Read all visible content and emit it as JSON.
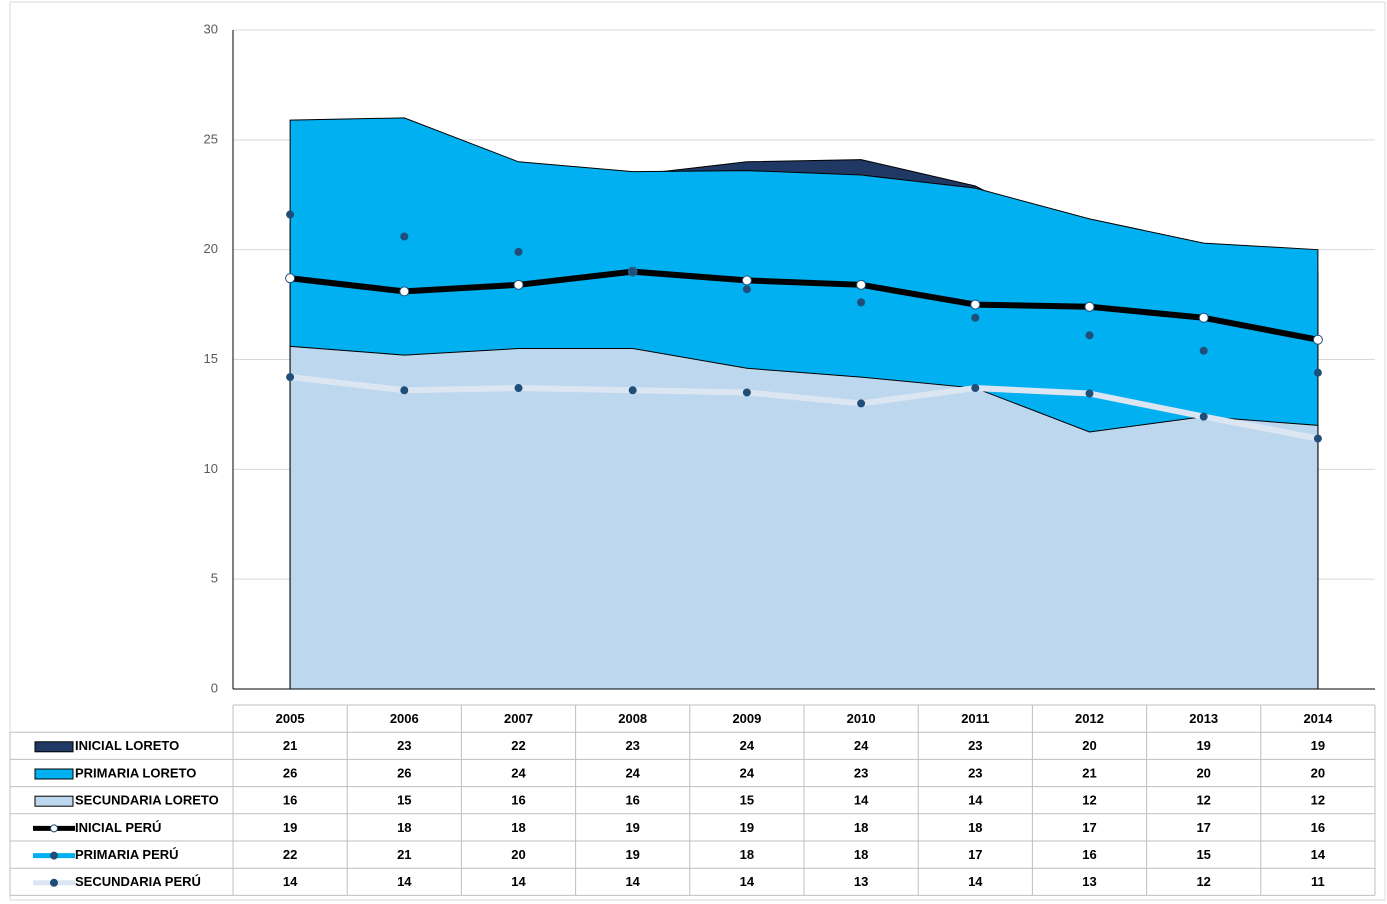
{
  "chart_data": {
    "type": "area",
    "categories": [
      "2005",
      "2006",
      "2007",
      "2008",
      "2009",
      "2010",
      "2011",
      "2012",
      "2013",
      "2014"
    ],
    "ylim": [
      0,
      30
    ],
    "yticks": [
      0,
      5,
      10,
      15,
      20,
      25,
      30
    ],
    "grid": true,
    "series": [
      {
        "name": "INICIAL LORETO",
        "type": "area",
        "color": "#203864",
        "values": [
          21.2,
          22.8,
          22.3,
          23.4,
          24.0,
          24.1,
          22.9,
          20.2,
          19.2,
          19.0
        ],
        "value_labels": [
          "21",
          "23",
          "22",
          "23",
          "24",
          "24",
          "23",
          "20",
          "19",
          "19"
        ]
      },
      {
        "name": "PRIMARIA LORETO",
        "type": "area",
        "color": "#00b0f0",
        "values": [
          25.9,
          26.0,
          24.0,
          23.55,
          23.6,
          23.4,
          22.8,
          21.4,
          20.3,
          20.0
        ],
        "value_labels": [
          "26",
          "26",
          "24",
          "24",
          "24",
          "23",
          "23",
          "21",
          "20",
          "20"
        ]
      },
      {
        "name": "SECUNDARIA LORETO",
        "type": "area",
        "color": "#bdd7ee",
        "values": [
          15.6,
          15.2,
          15.5,
          15.5,
          14.6,
          14.2,
          13.7,
          11.7,
          12.4,
          12.0
        ],
        "value_labels": [
          "16",
          "15",
          "16",
          "16",
          "15",
          "14",
          "14",
          "12",
          "12",
          "12"
        ]
      },
      {
        "name": "INICIAL PERÚ",
        "type": "line",
        "color": "#000000",
        "marker_color": "#ffffff",
        "values": [
          18.7,
          18.1,
          18.4,
          19.0,
          18.6,
          18.4,
          17.5,
          17.4,
          16.9,
          15.9
        ],
        "value_labels": [
          "19",
          "18",
          "18",
          "19",
          "19",
          "18",
          "18",
          "17",
          "17",
          "16"
        ]
      },
      {
        "name": "PRIMARIA PERÚ",
        "type": "scatter",
        "color": "#00b0f0",
        "marker_color": "#1f4e79",
        "values": [
          21.6,
          20.6,
          19.9,
          19.0,
          18.2,
          17.6,
          16.9,
          16.1,
          15.4,
          14.4
        ],
        "value_labels": [
          "22",
          "21",
          "20",
          "19",
          "18",
          "18",
          "17",
          "16",
          "15",
          "14"
        ]
      },
      {
        "name": "SECUNDARIA PERÚ",
        "type": "line",
        "color": "#dce6f2",
        "marker_color": "#1f4e79",
        "values": [
          14.2,
          13.6,
          13.7,
          13.6,
          13.5,
          13.0,
          13.7,
          13.45,
          12.4,
          11.4
        ],
        "value_labels": [
          "14",
          "14",
          "14",
          "14",
          "14",
          "13",
          "14",
          "13",
          "12",
          "11"
        ]
      }
    ]
  }
}
